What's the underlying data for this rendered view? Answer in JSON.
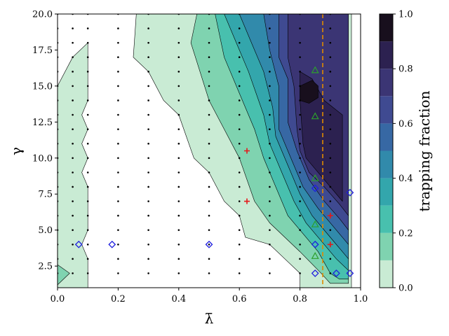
{
  "chart_data": {
    "type": "contour",
    "xlabel": "λ̄",
    "ylabel": "γ",
    "xlim": [
      0.0,
      1.0
    ],
    "ylim": [
      1.0,
      20.0
    ],
    "xticks": [
      "0.0",
      "0.2",
      "0.4",
      "0.6",
      "0.8",
      "1.0"
    ],
    "yticks": [
      "2.5",
      "5.0",
      "7.5",
      "10.0",
      "12.5",
      "15.0",
      "17.5",
      "20.0"
    ],
    "colorbar": {
      "label": "trapping fraction",
      "ticks": [
        "0.0",
        "0.2",
        "0.4",
        "0.6",
        "0.8",
        "1.0"
      ],
      "levels": [
        0.0,
        0.1,
        0.2,
        0.3,
        0.4,
        0.5,
        0.6,
        0.7,
        0.8,
        0.9,
        1.0
      ],
      "colors": [
        "#c9ebd4",
        "#7fd3b0",
        "#48c0ae",
        "#33a6ac",
        "#318aab",
        "#3768a4",
        "#3f4a91",
        "#3b3574",
        "#2c2150",
        "#180f1d"
      ]
    },
    "vertical_line": {
      "x": 0.875,
      "color": "#e08a00",
      "style": "dashed"
    },
    "sample_grid": {
      "x": [
        0.0,
        0.05,
        0.1,
        0.2,
        0.3,
        0.4,
        0.5,
        0.6,
        0.7,
        0.8,
        0.9
      ],
      "y": [
        2,
        3,
        4,
        5,
        6,
        7,
        8,
        9,
        10,
        11,
        12,
        13,
        14,
        15,
        16,
        17,
        18,
        19,
        20
      ]
    },
    "markers": {
      "green_triangle": [
        [
          0.85,
          16.1
        ],
        [
          0.85,
          12.9
        ],
        [
          0.85,
          8.6
        ],
        [
          0.85,
          5.4
        ],
        [
          0.85,
          3.2
        ]
      ],
      "red_plus": [
        [
          0.625,
          10.5
        ],
        [
          0.625,
          7.0
        ],
        [
          0.9,
          6.0
        ],
        [
          0.9,
          4.0
        ]
      ],
      "blue_diamond": [
        [
          0.07,
          4.0
        ],
        [
          0.18,
          4.0
        ],
        [
          0.5,
          4.0
        ],
        [
          0.85,
          7.9
        ],
        [
          0.85,
          4.0
        ],
        [
          0.85,
          2.0
        ],
        [
          0.92,
          2.0
        ],
        [
          0.965,
          7.6
        ],
        [
          0.965,
          2.0
        ]
      ]
    },
    "contour_regions": [
      {
        "level": 0.05,
        "polygon": [
          [
            0.0,
            1.0
          ],
          [
            0.0,
            15.0
          ],
          [
            0.05,
            17.0
          ],
          [
            0.1,
            18.0
          ],
          [
            0.1,
            14.0
          ],
          [
            0.08,
            13.0
          ],
          [
            0.1,
            12.0
          ],
          [
            0.08,
            11.0
          ],
          [
            0.1,
            10.0
          ],
          [
            0.08,
            9.0
          ],
          [
            0.1,
            8.0
          ],
          [
            0.1,
            5.0
          ],
          [
            0.08,
            4.0
          ],
          [
            0.1,
            3.0
          ],
          [
            0.1,
            1.0
          ],
          [
            0.0,
            1.0
          ]
        ]
      },
      {
        "level": 0.15,
        "polygon": [
          [
            0.0,
            1.2
          ],
          [
            0.0,
            2.6
          ],
          [
            0.04,
            2.0
          ],
          [
            0.0,
            1.2
          ]
        ]
      },
      {
        "level": 0.05,
        "polygon": [
          [
            0.26,
            20.0
          ],
          [
            0.25,
            17.0
          ],
          [
            0.3,
            16.0
          ],
          [
            0.35,
            14.0
          ],
          [
            0.4,
            13.0
          ],
          [
            0.45,
            10.0
          ],
          [
            0.5,
            9.0
          ],
          [
            0.55,
            7.0
          ],
          [
            0.6,
            6.0
          ],
          [
            0.62,
            4.5
          ],
          [
            0.7,
            4.0
          ],
          [
            0.75,
            3.0
          ],
          [
            0.8,
            2.0
          ],
          [
            0.8,
            1.0
          ],
          [
            0.97,
            1.0
          ],
          [
            0.97,
            20.0
          ],
          [
            0.26,
            20.0
          ]
        ]
      },
      {
        "level": 0.15,
        "polygon": [
          [
            0.46,
            20.0
          ],
          [
            0.44,
            18.0
          ],
          [
            0.5,
            14.0
          ],
          [
            0.55,
            12.0
          ],
          [
            0.6,
            10.0
          ],
          [
            0.65,
            7.0
          ],
          [
            0.7,
            5.5
          ],
          [
            0.75,
            4.5
          ],
          [
            0.8,
            3.5
          ],
          [
            0.87,
            2.0
          ],
          [
            0.9,
            1.3
          ],
          [
            0.96,
            1.3
          ],
          [
            0.96,
            20.0
          ],
          [
            0.46,
            20.0
          ]
        ]
      },
      {
        "level": 0.25,
        "polygon": [
          [
            0.52,
            20.0
          ],
          [
            0.55,
            17.0
          ],
          [
            0.6,
            14.5
          ],
          [
            0.65,
            12.0
          ],
          [
            0.68,
            10.0
          ],
          [
            0.72,
            8.0
          ],
          [
            0.76,
            6.0
          ],
          [
            0.8,
            5.0
          ],
          [
            0.86,
            3.5
          ],
          [
            0.9,
            2.0
          ],
          [
            0.93,
            1.6
          ],
          [
            0.96,
            1.6
          ],
          [
            0.96,
            20.0
          ],
          [
            0.52,
            20.0
          ]
        ]
      },
      {
        "level": 0.35,
        "polygon": [
          [
            0.55,
            20.0
          ],
          [
            0.59,
            18.0
          ],
          [
            0.63,
            16.0
          ],
          [
            0.68,
            13.0
          ],
          [
            0.7,
            11.0
          ],
          [
            0.74,
            9.0
          ],
          [
            0.78,
            7.0
          ],
          [
            0.82,
            5.5
          ],
          [
            0.88,
            4.0
          ],
          [
            0.92,
            3.0
          ],
          [
            0.96,
            2.2
          ],
          [
            0.96,
            20.0
          ],
          [
            0.55,
            20.0
          ]
        ]
      },
      {
        "level": 0.45,
        "polygon": [
          [
            0.6,
            20.0
          ],
          [
            0.64,
            18.0
          ],
          [
            0.68,
            16.0
          ],
          [
            0.71,
            13.5
          ],
          [
            0.72,
            11.5
          ],
          [
            0.76,
            9.5
          ],
          [
            0.8,
            7.5
          ],
          [
            0.84,
            6.0
          ],
          [
            0.9,
            4.5
          ],
          [
            0.94,
            3.5
          ],
          [
            0.96,
            3.0
          ],
          [
            0.96,
            20.0
          ],
          [
            0.6,
            20.0
          ]
        ]
      },
      {
        "level": 0.55,
        "polygon": [
          [
            0.68,
            20.0
          ],
          [
            0.7,
            17.5
          ],
          [
            0.73,
            15.0
          ],
          [
            0.73,
            12.0
          ],
          [
            0.77,
            10.0
          ],
          [
            0.81,
            8.0
          ],
          [
            0.86,
            6.5
          ],
          [
            0.92,
            5.0
          ],
          [
            0.96,
            4.0
          ],
          [
            0.96,
            20.0
          ],
          [
            0.68,
            20.0
          ]
        ]
      },
      {
        "level": 0.65,
        "polygon": [
          [
            0.73,
            20.0
          ],
          [
            0.73,
            17.0
          ],
          [
            0.76,
            15.5
          ],
          [
            0.76,
            12.5
          ],
          [
            0.79,
            10.5
          ],
          [
            0.83,
            8.5
          ],
          [
            0.88,
            7.0
          ],
          [
            0.93,
            5.8
          ],
          [
            0.96,
            5.0
          ],
          [
            0.96,
            20.0
          ],
          [
            0.73,
            20.0
          ]
        ]
      },
      {
        "level": 0.75,
        "polygon": [
          [
            0.76,
            20.0
          ],
          [
            0.76,
            17.0
          ],
          [
            0.78,
            15.0
          ],
          [
            0.79,
            12.0
          ],
          [
            0.8,
            10.5
          ],
          [
            0.83,
            9.0
          ],
          [
            0.88,
            8.0
          ],
          [
            0.93,
            6.8
          ],
          [
            0.96,
            6.0
          ],
          [
            0.96,
            20.0
          ],
          [
            0.76,
            20.0
          ]
        ]
      },
      {
        "level": 0.85,
        "polygon": [
          [
            0.8,
            16.0
          ],
          [
            0.8,
            14.0
          ],
          [
            0.81,
            11.0
          ],
          [
            0.82,
            10.0
          ],
          [
            0.86,
            9.0
          ],
          [
            0.9,
            8.0
          ],
          [
            0.94,
            7.0
          ],
          [
            0.94,
            13.0
          ],
          [
            0.88,
            14.0
          ],
          [
            0.84,
            15.5
          ],
          [
            0.8,
            16.0
          ]
        ]
      },
      {
        "level": 0.95,
        "polygon": [
          [
            0.8,
            15.0
          ],
          [
            0.8,
            14.0
          ],
          [
            0.83,
            13.8
          ],
          [
            0.86,
            14.2
          ],
          [
            0.86,
            15.0
          ],
          [
            0.84,
            15.4
          ],
          [
            0.8,
            15.0
          ]
        ]
      }
    ]
  }
}
